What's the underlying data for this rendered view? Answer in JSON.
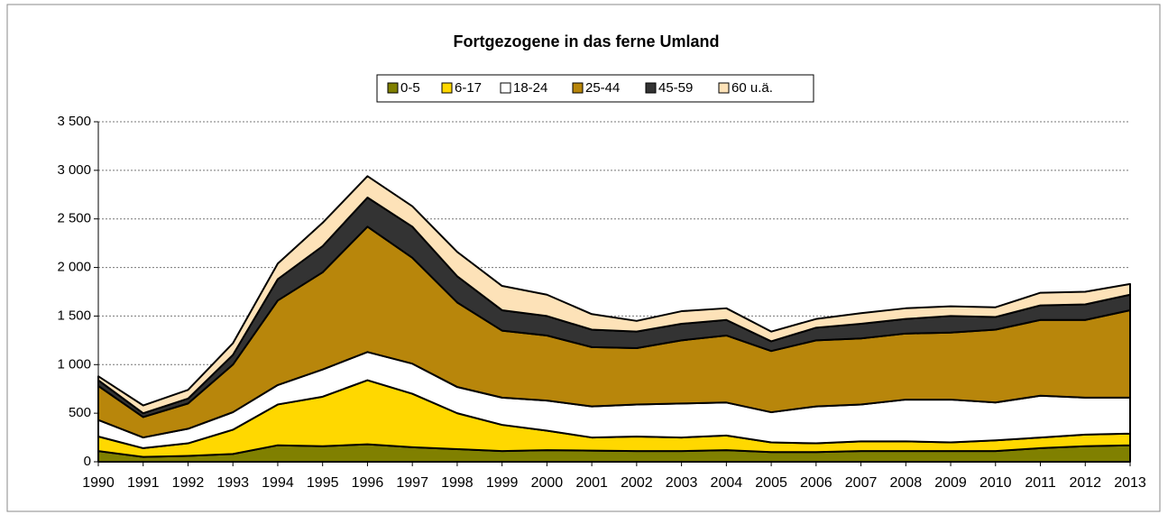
{
  "chart_data": {
    "type": "stacked_area",
    "title": "Fortgezogene in das ferne Umland",
    "categories": [
      "1990",
      "1991",
      "1992",
      "1993",
      "1994",
      "1995",
      "1996",
      "1997",
      "1998",
      "1999",
      "2000",
      "2001",
      "2002",
      "2003",
      "2004",
      "2005",
      "2006",
      "2007",
      "2008",
      "2009",
      "2010",
      "2011",
      "2012",
      "2013"
    ],
    "series": [
      {
        "name": "0-5",
        "color": "#808000",
        "values": [
          110,
          50,
          60,
          80,
          170,
          160,
          180,
          150,
          130,
          110,
          120,
          115,
          110,
          110,
          120,
          100,
          100,
          110,
          110,
          110,
          110,
          140,
          160,
          170
        ]
      },
      {
        "name": "6-17",
        "color": "#ffd800",
        "values": [
          150,
          90,
          130,
          250,
          420,
          510,
          660,
          550,
          370,
          270,
          200,
          135,
          150,
          140,
          150,
          100,
          90,
          100,
          100,
          90,
          110,
          110,
          120,
          120
        ]
      },
      {
        "name": "18-24",
        "color": "#ffffff",
        "values": [
          170,
          110,
          150,
          180,
          200,
          280,
          290,
          310,
          270,
          280,
          310,
          320,
          330,
          350,
          340,
          310,
          380,
          380,
          430,
          440,
          390,
          430,
          380,
          370
        ]
      },
      {
        "name": "25-44",
        "color": "#b8860b",
        "values": [
          350,
          210,
          260,
          490,
          870,
          1000,
          1290,
          1090,
          870,
          690,
          670,
          610,
          580,
          650,
          690,
          630,
          680,
          680,
          680,
          690,
          750,
          780,
          800,
          900
        ]
      },
      {
        "name": "45-59",
        "color": "#333333",
        "values": [
          60,
          40,
          50,
          100,
          220,
          270,
          300,
          320,
          270,
          210,
          200,
          180,
          170,
          170,
          160,
          100,
          130,
          150,
          150,
          170,
          130,
          150,
          160,
          160
        ]
      },
      {
        "name": "60 u.ä.",
        "color": "#fde2b8",
        "values": [
          40,
          80,
          90,
          120,
          160,
          240,
          220,
          210,
          250,
          250,
          220,
          160,
          110,
          130,
          120,
          100,
          90,
          110,
          110,
          100,
          100,
          130,
          130,
          110
        ]
      }
    ],
    "ylim": [
      0,
      3500
    ],
    "yticks": [
      0,
      500,
      {
        "value": 1000,
        "label": "1 000"
      },
      {
        "value": 1500,
        "label": "1 500"
      },
      {
        "value": 2000,
        "label": "2 000"
      },
      {
        "value": 2500,
        "label": "2 500"
      },
      {
        "value": 3000,
        "label": "3 000"
      },
      {
        "value": 3500,
        "label": "3 500"
      }
    ],
    "grid": true,
    "legend": "top"
  }
}
